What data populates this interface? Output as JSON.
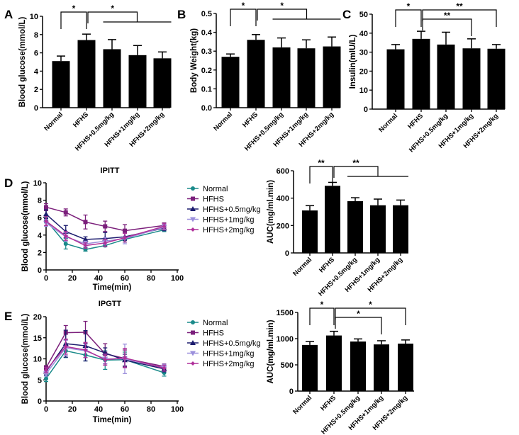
{
  "colors": {
    "bar": "#000000",
    "Normal": "#1a8a8a",
    "HFHS": "#7b1f7b",
    "HFHS+0.5mg/kg": "#1c1c6e",
    "HFHS+1mg/kg": "#9b8fdc",
    "HFHS+2mg/kg": "#b0309a"
  },
  "chart_data": [
    {
      "id": "A",
      "type": "bar",
      "panel_label": "A",
      "ylabel": "Blood glucose(mmol/L)",
      "ylim": [
        0,
        10
      ],
      "yticks": [
        0,
        2,
        4,
        6,
        8,
        10
      ],
      "categories": [
        "Normal",
        "HFHS",
        "HFHS+0.5mg/kg",
        "HFHS+1mg/kg",
        "HFHS+2mg/kg"
      ],
      "values": [
        5.1,
        7.4,
        6.4,
        5.75,
        5.4
      ],
      "errors": [
        0.55,
        0.65,
        1.05,
        1.05,
        0.7
      ],
      "significance": [
        {
          "from": 0,
          "to": 1,
          "label": "*",
          "level": 0
        },
        {
          "from": 1,
          "to_group": [
            2,
            4
          ],
          "label": "*",
          "level": 0
        }
      ]
    },
    {
      "id": "B",
      "type": "bar",
      "panel_label": "B",
      "ylabel": "Body Weight(kg)",
      "ylim": [
        0,
        0.5
      ],
      "yticks": [
        0.0,
        0.1,
        0.2,
        0.3,
        0.4,
        0.5
      ],
      "tick_decimals": 1,
      "categories": [
        "Normal",
        "HFHS",
        "HFHS+0.5mg/kg",
        "HFHS+1mg/kg",
        "HFHS+2mg/kg"
      ],
      "values": [
        0.27,
        0.36,
        0.32,
        0.315,
        0.325
      ],
      "errors": [
        0.015,
        0.028,
        0.05,
        0.045,
        0.05
      ],
      "significance": [
        {
          "from": 0,
          "to": 1,
          "label": "*",
          "level": 0
        },
        {
          "from": 1,
          "to_group": [
            2,
            4
          ],
          "label": "*",
          "level": 0
        }
      ]
    },
    {
      "id": "C",
      "type": "bar",
      "panel_label": "C",
      "ylabel": "Insulin(mIU/L)",
      "ylim": [
        0,
        50
      ],
      "yticks": [
        0,
        10,
        20,
        30,
        40,
        50
      ],
      "categories": [
        "Normal",
        "HFHS",
        "HFHS+0.5mg/kg",
        "HFHS+1mg/kg",
        "HFHS+2mg/kg"
      ],
      "values": [
        31.5,
        37,
        34,
        32,
        31.8
      ],
      "errors": [
        2.5,
        4,
        6.5,
        5,
        2.2
      ],
      "significance": [
        {
          "from": 0,
          "to": 1,
          "label": "*",
          "level": 0
        },
        {
          "from": 1,
          "to": 4,
          "label": "**",
          "level": 0
        },
        {
          "from": 1,
          "to": 3,
          "label": "**",
          "level": 1
        }
      ]
    },
    {
      "id": "D",
      "type": "line",
      "panel_label": "D",
      "title": "IPITT",
      "xlabel": "Time(min)",
      "ylabel": "Blood glucose(mmol/L)",
      "xlim": [
        0,
        100
      ],
      "xticks": [
        0,
        20,
        40,
        60,
        80,
        100
      ],
      "ylim": [
        0,
        10
      ],
      "yticks": [
        0,
        2,
        4,
        6,
        8,
        10
      ],
      "x": [
        0,
        15,
        30,
        45,
        60,
        90
      ],
      "series": [
        {
          "name": "Normal",
          "marker": "circle",
          "values": [
            5.7,
            3.0,
            2.35,
            2.8,
            3.5,
            4.6
          ],
          "errors": [
            0.3,
            0.6,
            0.2,
            0.15,
            0.3,
            0.2
          ]
        },
        {
          "name": "HFHS",
          "marker": "square",
          "values": [
            7.2,
            6.6,
            5.5,
            5.0,
            4.5,
            5.1
          ],
          "errors": [
            0.4,
            0.4,
            0.8,
            0.6,
            0.7,
            0.3
          ]
        },
        {
          "name": "HFHS+0.5mg/kg",
          "marker": "triangle",
          "values": [
            6.4,
            4.4,
            3.5,
            3.6,
            3.8,
            4.8
          ],
          "errors": [
            0.5,
            0.7,
            0.3,
            0.7,
            0.4,
            0.3
          ]
        },
        {
          "name": "HFHS+1mg/kg",
          "marker": "triangle-down",
          "values": [
            5.4,
            3.8,
            3.0,
            3.3,
            3.6,
            4.9
          ],
          "errors": [
            0.4,
            0.5,
            0.3,
            0.4,
            0.6,
            0.3
          ]
        },
        {
          "name": "HFHS+2mg/kg",
          "marker": "star",
          "values": [
            5.6,
            3.9,
            2.8,
            3.1,
            3.7,
            5.0
          ],
          "errors": [
            0.5,
            0.5,
            0.3,
            0.4,
            0.5,
            0.3
          ]
        }
      ]
    },
    {
      "id": "D2",
      "type": "bar",
      "ylabel": "AUC(mg/ml.min)",
      "ylim": [
        0,
        600
      ],
      "yticks": [
        0,
        200,
        400,
        600
      ],
      "categories": [
        "Normal",
        "HFHS",
        "HFHS+0.5mg/kg",
        "HFHS+1mg/kg",
        "HFHS+2mg/kg"
      ],
      "values": [
        310,
        490,
        378,
        348,
        348
      ],
      "errors": [
        35,
        25,
        25,
        45,
        38
      ],
      "significance": [
        {
          "from": 0,
          "to": 1,
          "label": "**",
          "level": 0
        },
        {
          "from": 1,
          "to_group": [
            2,
            4
          ],
          "label": "**",
          "level": 0
        }
      ]
    },
    {
      "id": "E",
      "type": "line",
      "panel_label": "E",
      "title": "IPGTT",
      "xlabel": "Time(min)",
      "ylabel": "Blood glucose(mmol/L)",
      "xlim": [
        0,
        100
      ],
      "xticks": [
        0,
        20,
        40,
        60,
        80,
        100
      ],
      "ylim": [
        0,
        20
      ],
      "yticks": [
        0,
        5,
        10,
        15,
        20
      ],
      "x": [
        0,
        15,
        30,
        45,
        60,
        90
      ],
      "series": [
        {
          "name": "Normal",
          "marker": "circle",
          "values": [
            5.3,
            11.9,
            10.9,
            9.7,
            9.8,
            6.7
          ],
          "errors": [
            0.7,
            1.6,
            1.4,
            2.2,
            1.8,
            0.8
          ]
        },
        {
          "name": "HFHS",
          "marker": "square",
          "values": [
            7.9,
            16.2,
            16.3,
            11.2,
            10.1,
            8.2
          ],
          "errors": [
            0.5,
            1.7,
            2.6,
            2.4,
            2.0,
            0.6
          ]
        },
        {
          "name": "HFHS+0.5mg/kg",
          "marker": "triangle",
          "values": [
            7.0,
            13.6,
            13.1,
            11.4,
            9.7,
            7.6
          ],
          "errors": [
            0.8,
            3.2,
            3.6,
            1.2,
            1.4,
            0.7
          ]
        },
        {
          "name": "HFHS+1mg/kg",
          "marker": "triangle-down",
          "values": [
            6.5,
            12.6,
            11.9,
            10.0,
            10.0,
            7.9
          ],
          "errors": [
            0.6,
            1.8,
            1.6,
            1.1,
            3.5,
            0.8
          ]
        },
        {
          "name": "HFHS+2mg/kg",
          "marker": "star",
          "values": [
            7.3,
            12.9,
            12.1,
            9.8,
            10.2,
            7.8
          ],
          "errors": [
            0.6,
            1.8,
            1.8,
            1.3,
            2.3,
            0.7
          ]
        }
      ]
    },
    {
      "id": "E2",
      "type": "bar",
      "ylabel": "AUC(mg/ml.min)",
      "ylim": [
        0,
        1500
      ],
      "yticks": [
        0,
        500,
        1000,
        1500
      ],
      "categories": [
        "Normal",
        "HFHS",
        "HFHS+0.5mg/kg",
        "HFHS+1mg/kg",
        "HFHS+2mg/kg"
      ],
      "values": [
        880,
        1060,
        945,
        890,
        905
      ],
      "errors": [
        65,
        80,
        50,
        70,
        70
      ],
      "significance": [
        {
          "from": 0,
          "to": 1,
          "label": "*",
          "level": 0
        },
        {
          "from": 1,
          "to": 4,
          "label": "*",
          "level": 0
        },
        {
          "from": 1,
          "to": 3,
          "label": "*",
          "level": 1
        }
      ]
    }
  ]
}
